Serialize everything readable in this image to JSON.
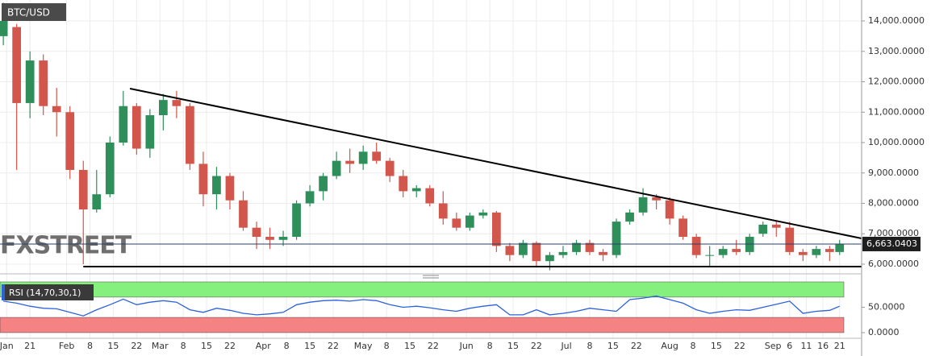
{
  "chart_data": {
    "type": "candlestick",
    "title": "BTC/USD",
    "watermark": "FXSTREET",
    "x": [
      13,
      17,
      21,
      25,
      29,
      33,
      37,
      41,
      45,
      49,
      53,
      57,
      61,
      65,
      69,
      73,
      77,
      81,
      85,
      89,
      93,
      97,
      101,
      105,
      109,
      113,
      117,
      121,
      125,
      129,
      133,
      137,
      141,
      145,
      149,
      153,
      157,
      161,
      165,
      169,
      173,
      177,
      181,
      185,
      189,
      193,
      197,
      201,
      205,
      209,
      213,
      217,
      221,
      225,
      229,
      233,
      237,
      241,
      245,
      249,
      253,
      257,
      261,
      264
    ],
    "open": [
      13500,
      13800,
      11300,
      12700,
      11200,
      11000,
      9100,
      7800,
      8300,
      10000,
      11200,
      9800,
      10900,
      11400,
      11200,
      9300,
      8300,
      8900,
      8100,
      7200,
      6900,
      6800,
      6900,
      8000,
      8400,
      8900,
      9400,
      9300,
      9700,
      9400,
      8900,
      8400,
      8500,
      8000,
      7500,
      7200,
      7600,
      7700,
      6600,
      6300,
      6700,
      6100,
      6300,
      6400,
      6700,
      6400,
      6300,
      7400,
      7700,
      8200,
      8100,
      7500,
      6900,
      6300,
      6300,
      6500,
      6400,
      7000,
      7300,
      7200,
      6400,
      6300,
      6500,
      6400
    ],
    "high": [
      14600,
      13900,
      13000,
      12900,
      11800,
      11200,
      9400,
      9100,
      10200,
      11700,
      11300,
      11100,
      11600,
      11700,
      11300,
      9700,
      9200,
      9000,
      8400,
      7400,
      7200,
      7100,
      8100,
      8600,
      9000,
      9700,
      9800,
      9900,
      10000,
      9500,
      9100,
      8600,
      8600,
      8400,
      7700,
      7700,
      7800,
      7750,
      6700,
      6800,
      6750,
      6400,
      6600,
      6800,
      6800,
      6500,
      7500,
      7800,
      8500,
      8300,
      8200,
      7600,
      7000,
      6600,
      6600,
      6800,
      7000,
      7400,
      7400,
      7400,
      6500,
      6600,
      6600,
      6800
    ],
    "low": [
      13200,
      9100,
      10800,
      10900,
      10200,
      8800,
      6000,
      7700,
      8200,
      9900,
      9600,
      9500,
      10400,
      10800,
      9100,
      7900,
      7800,
      7800,
      7100,
      6500,
      6500,
      6600,
      6800,
      7900,
      8100,
      8800,
      9000,
      9100,
      9300,
      8700,
      8200,
      8200,
      7900,
      7300,
      7100,
      7100,
      7500,
      6400,
      6100,
      6200,
      5900,
      5800,
      6200,
      6300,
      6300,
      6100,
      6200,
      7300,
      7600,
      7800,
      7300,
      6800,
      6200,
      5900,
      6200,
      6300,
      6300,
      6900,
      6900,
      6300,
      6100,
      6200,
      6100,
      6300
    ],
    "close": [
      14000,
      11300,
      12700,
      11200,
      11000,
      9100,
      7800,
      8300,
      10000,
      11200,
      9800,
      10900,
      11400,
      11200,
      9300,
      8300,
      8900,
      8100,
      7200,
      6900,
      6800,
      6900,
      8000,
      8400,
      8900,
      9400,
      9300,
      9700,
      9400,
      8900,
      8400,
      8500,
      8000,
      7500,
      7200,
      7600,
      7700,
      6600,
      6300,
      6700,
      6100,
      6300,
      6400,
      6700,
      6400,
      6300,
      7400,
      7700,
      8200,
      8100,
      7500,
      6900,
      6300,
      6300,
      6500,
      6400,
      6900,
      7300,
      7200,
      6400,
      6300,
      6500,
      6400,
      6663
    ],
    "up_color": "#2f8f5b",
    "down_color": "#d2564b",
    "xlim": [
      12,
      270.6
    ],
    "xticks": [
      {
        "value": 14,
        "label": "Jan"
      },
      21,
      {
        "value": 32,
        "label": "Feb"
      },
      {
        "value": 39,
        "label": "8"
      },
      {
        "value": 46,
        "label": "15"
      },
      {
        "value": 53,
        "label": "22"
      },
      {
        "value": 60,
        "label": "Mar"
      },
      {
        "value": 67,
        "label": "8"
      },
      {
        "value": 74,
        "label": "15"
      },
      {
        "value": 81,
        "label": "22"
      },
      {
        "value": 91,
        "label": "Apr"
      },
      {
        "value": 98,
        "label": "8"
      },
      {
        "value": 105,
        "label": "15"
      },
      {
        "value": 112,
        "label": "22"
      },
      {
        "value": 121,
        "label": "May"
      },
      {
        "value": 128,
        "label": "8"
      },
      {
        "value": 135,
        "label": "15"
      },
      {
        "value": 142,
        "label": "22"
      },
      {
        "value": 152,
        "label": "Jun"
      },
      {
        "value": 159,
        "label": "8"
      },
      {
        "value": 166,
        "label": "15"
      },
      {
        "value": 173,
        "label": "22"
      },
      {
        "value": 182,
        "label": "Jul"
      },
      {
        "value": 189,
        "label": "8"
      },
      {
        "value": 196,
        "label": "15"
      },
      {
        "value": 203,
        "label": "22"
      },
      {
        "value": 213,
        "label": "Aug"
      },
      {
        "value": 220,
        "label": "8"
      },
      {
        "value": 227,
        "label": "15"
      },
      {
        "value": 234,
        "label": "22"
      },
      {
        "value": 244,
        "label": "Sep"
      },
      {
        "value": 249,
        "label": "6"
      },
      {
        "value": 254,
        "label": "11"
      },
      {
        "value": 259,
        "label": "16"
      },
      {
        "value": 264,
        "label": "21"
      }
    ],
    "ylim": [
      5682,
      14689
    ],
    "yticks": [
      {
        "value": 6000,
        "label": "6,000.0000"
      },
      {
        "value": 7000,
        "label": "7,000.0000"
      },
      {
        "value": 8000,
        "label": "8,000.0000"
      },
      {
        "value": 9000,
        "label": "9,000.0000"
      },
      {
        "value": 10000,
        "label": "10,000.0000"
      },
      {
        "value": 11000,
        "label": "11,000.0000"
      },
      {
        "value": 12000,
        "label": "12,000.0000"
      },
      {
        "value": 13000,
        "label": "13,000.0000"
      },
      {
        "value": 14000,
        "label": "14,000.0000"
      }
    ],
    "grid": true,
    "last_price": {
      "value": 6663.0403,
      "label": "6,663.0403"
    },
    "trendlines": [
      {
        "x": [
          51,
          270.6
        ],
        "y": [
          11775,
          6848
        ]
      },
      {
        "x": [
          37,
          270.6
        ],
        "y": [
          5921,
          5921
        ]
      }
    ],
    "rsi": {
      "title": "RSI (14,70,30,1)",
      "color": "#2b62d9",
      "values": [
        62,
        58,
        52,
        48,
        47,
        40,
        33,
        45,
        55,
        66,
        55,
        60,
        63,
        60,
        45,
        40,
        48,
        44,
        38,
        35,
        37,
        40,
        55,
        60,
        63,
        64,
        62,
        65,
        63,
        55,
        50,
        52,
        49,
        45,
        42,
        48,
        52,
        55,
        35,
        35,
        45,
        35,
        38,
        42,
        48,
        45,
        42,
        65,
        68,
        72,
        65,
        58,
        45,
        38,
        42,
        45,
        44,
        50,
        56,
        62,
        38,
        42,
        44,
        52
      ],
      "ylim": [
        -8,
        100
      ],
      "yticks": [
        {
          "value": 0,
          "label": "0.0000"
        },
        {
          "value": 50,
          "label": "50.0000"
        }
      ],
      "overbought": 70,
      "oversold": 30
    }
  }
}
